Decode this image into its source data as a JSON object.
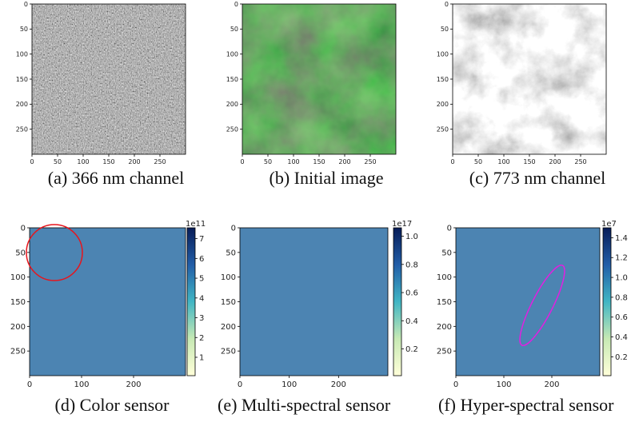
{
  "panels": [
    {
      "caption": "(a) 366 nm channel",
      "xlim": [
        0,
        300
      ],
      "ylim": [
        0,
        300
      ],
      "xticks": [
        0,
        50,
        100,
        150,
        200,
        250
      ],
      "yticks": [
        0,
        50,
        100,
        150,
        200,
        250
      ]
    },
    {
      "caption": "(b) Initial image",
      "xlim": [
        0,
        300
      ],
      "ylim": [
        0,
        300
      ],
      "xticks": [
        0,
        50,
        100,
        150,
        200,
        250
      ],
      "yticks": [
        0,
        50,
        100,
        150,
        200,
        250
      ]
    },
    {
      "caption": "(c) 773 nm channel",
      "xlim": [
        0,
        300
      ],
      "ylim": [
        0,
        300
      ],
      "xticks": [
        0,
        50,
        100,
        150,
        200,
        250
      ],
      "yticks": [
        0,
        50,
        100,
        150,
        200,
        250
      ]
    },
    {
      "caption": "(d) Color sensor",
      "xlim": [
        0,
        300
      ],
      "ylim": [
        0,
        300
      ],
      "xticks": [
        0,
        100,
        200
      ],
      "yticks": [
        0,
        50,
        100,
        150,
        200,
        250
      ],
      "colorbar": {
        "exponent": "1e11",
        "lim": [
          0.07,
          7.55
        ],
        "ticks": [
          1,
          2,
          3,
          4,
          5,
          6,
          7
        ]
      }
    },
    {
      "caption": "(e) Multi-spectral sensor",
      "xlim": [
        0,
        300
      ],
      "ylim": [
        0,
        300
      ],
      "xticks": [
        0,
        100,
        200
      ],
      "yticks": [
        0,
        50,
        100,
        150,
        200,
        250
      ],
      "colorbar": {
        "exponent": "1e17",
        "lim": [
          0.01,
          1.06
        ],
        "ticks": [
          0.2,
          0.4,
          0.6,
          0.8,
          {
            "value": 1.0,
            "label": "1.0"
          }
        ]
      }
    },
    {
      "caption": "(f) Hyper-spectral sensor",
      "xlim": [
        0,
        300
      ],
      "ylim": [
        0,
        300
      ],
      "xticks": [
        0,
        100,
        200
      ],
      "yticks": [
        0,
        50,
        100,
        150,
        200,
        250
      ],
      "colorbar": {
        "exponent": "1e7",
        "lim": [
          0.01,
          1.5
        ],
        "ticks": [
          0.2,
          0.4,
          0.6,
          0.8,
          {
            "value": 1.0,
            "label": "1.0"
          },
          1.2,
          1.4
        ]
      }
    }
  ]
}
